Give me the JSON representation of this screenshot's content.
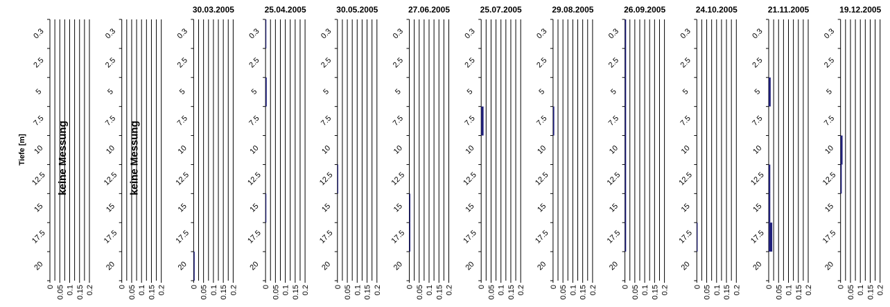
{
  "chart_data": {
    "type": "bar",
    "orientation": "horizontal",
    "ylabel": "Tiefe [m]",
    "depth_categories": [
      "0.3",
      "2.5",
      "5",
      "7.5",
      "10",
      "12.5",
      "15",
      "17.5",
      "20"
    ],
    "xticks": [
      "0",
      "0.05",
      "0.1",
      "0.15",
      "0.2"
    ],
    "xlim": [
      0,
      0.2
    ],
    "x_gridlines": [
      0,
      0.025,
      0.05,
      0.075,
      0.1,
      0.125,
      0.15,
      0.175,
      0.2
    ],
    "bar_color": "#1f1f7a",
    "panels": [
      {
        "title": "",
        "note": "keine Messung",
        "values": []
      },
      {
        "title": "",
        "note": "keine Messung",
        "values": []
      },
      {
        "title": "30.03.2005",
        "note": "",
        "values": [
          0,
          0,
          0,
          0,
          0,
          0,
          0,
          0,
          0.005
        ]
      },
      {
        "title": "25.04.2005",
        "note": "",
        "values": [
          0.004,
          0,
          0.006,
          0,
          0,
          0,
          0.004,
          0,
          0
        ]
      },
      {
        "title": "30.05.2005",
        "note": "",
        "values": [
          0,
          0,
          0,
          0,
          0,
          0.004,
          0,
          0,
          0
        ]
      },
      {
        "title": "27.06.2005",
        "note": "",
        "values": [
          0,
          0,
          0,
          0,
          0,
          0,
          0.005,
          0.005,
          0
        ]
      },
      {
        "title": "25.07.2005",
        "note": "",
        "values": [
          0,
          0,
          0,
          0.012,
          0,
          0,
          0,
          0,
          0
        ]
      },
      {
        "title": "29.08.2005",
        "note": "",
        "values": [
          0,
          0,
          0,
          0.006,
          0,
          0,
          0,
          0,
          0
        ]
      },
      {
        "title": "26.09.2005",
        "note": "",
        "values": [
          0.006,
          0.006,
          0.006,
          0.006,
          0.006,
          0.006,
          0.006,
          0.006,
          0
        ]
      },
      {
        "title": "24.10.2005",
        "note": "",
        "values": [
          0,
          0,
          0,
          0,
          0,
          0,
          0,
          0.004,
          0
        ]
      },
      {
        "title": "21.11.2005",
        "note": "",
        "values": [
          0,
          0,
          0.01,
          0,
          0,
          0.008,
          0.008,
          0.018,
          0
        ]
      },
      {
        "title": "19.12.2005",
        "note": "",
        "values": [
          0,
          0,
          0,
          0,
          0.01,
          0.006,
          0,
          0,
          0
        ]
      }
    ]
  }
}
